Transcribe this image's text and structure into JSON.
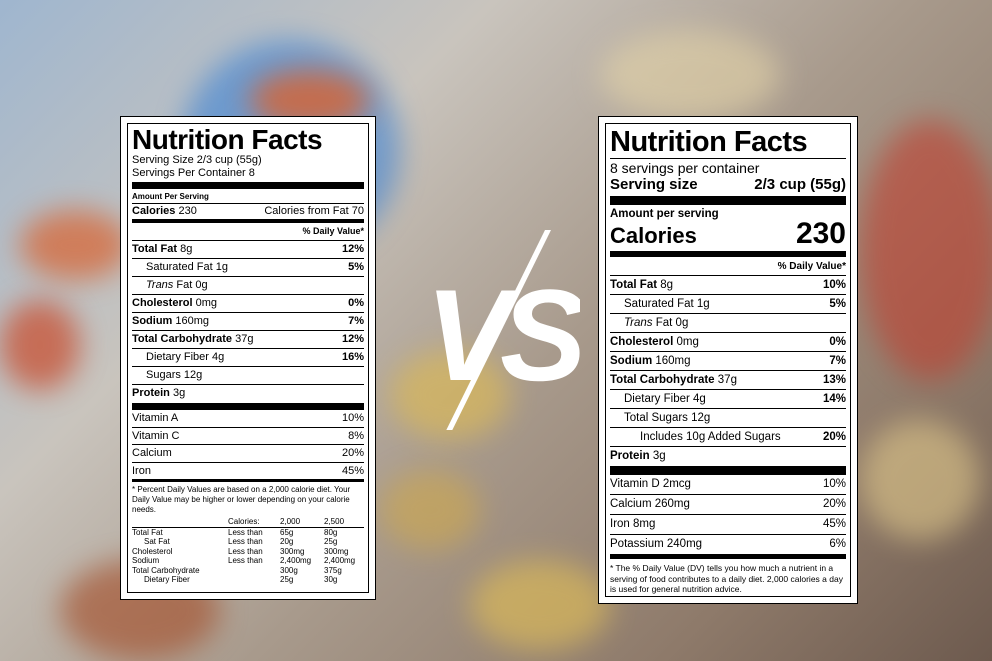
{
  "left": {
    "title": "Nutrition Facts",
    "serving_size": "Serving Size 2/3 cup (55g)",
    "servings_per_container": "Servings Per Container 8",
    "amount_per_serving": "Amount Per Serving",
    "calories_label": "Calories",
    "calories_value": "230",
    "calories_from_fat": "Calories from Fat 70",
    "daily_value_header": "% Daily Value*",
    "nutrients": [
      {
        "label": "Total Fat",
        "amount": "8g",
        "dv": "12%"
      },
      {
        "label": "Saturated Fat",
        "amount": "1g",
        "dv": "5%"
      },
      {
        "label": "Trans",
        "amount": "Fat 0g",
        "dv": ""
      },
      {
        "label": "Cholesterol",
        "amount": "0mg",
        "dv": "0%"
      },
      {
        "label": "Sodium",
        "amount": "160mg",
        "dv": "7%"
      },
      {
        "label": "Total Carbohydrate",
        "amount": "37g",
        "dv": "12%"
      },
      {
        "label": "Dietary Fiber",
        "amount": "4g",
        "dv": "16%"
      },
      {
        "label": "Sugars",
        "amount": "12g",
        "dv": ""
      },
      {
        "label": "Protein",
        "amount": "3g",
        "dv": ""
      }
    ],
    "vitamins": [
      {
        "label": "Vitamin A",
        "dv": "10%"
      },
      {
        "label": "Vitamin C",
        "dv": "8%"
      },
      {
        "label": "Calcium",
        "dv": "20%"
      },
      {
        "label": "Iron",
        "dv": "45%"
      }
    ],
    "footnote": "* Percent Daily Values are based on a 2,000 calorie diet. Your Daily Value may be higher or lower depending on your calorie needs.",
    "ref_header": [
      "Calories:",
      "2,000",
      "2,500"
    ],
    "ref_rows": [
      [
        "Total Fat",
        "Less than",
        "65g",
        "80g"
      ],
      [
        "Sat Fat",
        "Less than",
        "20g",
        "25g"
      ],
      [
        "Cholesterol",
        "Less than",
        "300mg",
        "300mg"
      ],
      [
        "Sodium",
        "Less than",
        "2,400mg",
        "2,400mg"
      ],
      [
        "Total Carbohydrate",
        "",
        "300g",
        "375g"
      ],
      [
        "Dietary Fiber",
        "",
        "25g",
        "30g"
      ]
    ]
  },
  "vs": {
    "text": "VS"
  },
  "right": {
    "title": "Nutrition Facts",
    "servings_per_container": "8 servings per container",
    "serving_size_label": "Serving size",
    "serving_size_value": "2/3 cup (55g)",
    "amount_per_serving": "Amount per serving",
    "calories_label": "Calories",
    "calories_value": "230",
    "daily_value_header": "% Daily Value*",
    "nutrients": [
      {
        "label": "Total Fat",
        "amount": "8g",
        "dv": "10%"
      },
      {
        "label": "Saturated Fat",
        "amount": "1g",
        "dv": "5%"
      },
      {
        "label": "Trans",
        "amount": "Fat 0g",
        "dv": ""
      },
      {
        "label": "Cholesterol",
        "amount": "0mg",
        "dv": "0%"
      },
      {
        "label": "Sodium",
        "amount": "160mg",
        "dv": "7%"
      },
      {
        "label": "Total Carbohydrate",
        "amount": "37g",
        "dv": "13%"
      },
      {
        "label": "Dietary Fiber",
        "amount": "4g",
        "dv": "14%"
      },
      {
        "label": "Total Sugars",
        "amount": "12g",
        "dv": ""
      },
      {
        "label": "Includes 10g Added Sugars",
        "amount": "",
        "dv": "20%"
      },
      {
        "label": "Protein",
        "amount": "3g",
        "dv": ""
      }
    ],
    "vitamins": [
      {
        "label": "Vitamin D 2mcg",
        "dv": "10%"
      },
      {
        "label": "Calcium 260mg",
        "dv": "20%"
      },
      {
        "label": "Iron 8mg",
        "dv": "45%"
      },
      {
        "label": "Potassium 240mg",
        "dv": "6%"
      }
    ],
    "footnote": "* The % Daily Value (DV) tells you how much a nutrient in a serving of food contributes to a daily diet. 2,000 calories a day is used for general nutrition advice."
  }
}
